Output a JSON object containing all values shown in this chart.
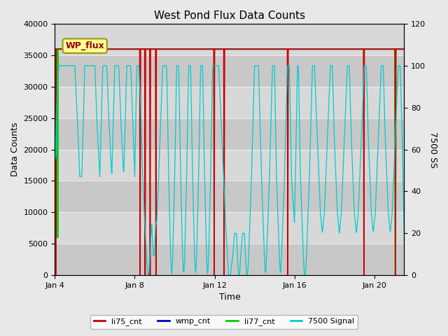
{
  "title": "West Pond Flux Data Counts",
  "xlabel": "Time",
  "ylabel_left": "Data Counts",
  "ylabel_right": "7500 SS",
  "left_ylim": [
    0,
    40000
  ],
  "right_ylim": [
    0,
    120
  ],
  "fig_facecolor": "#e8e8e8",
  "plot_facecolor": "#d4d4d4",
  "legend_label_box": "WP_flux",
  "legend_box_color": "#ffff99",
  "legend_box_border": "#999900",
  "colors": {
    "li75_cnt": "#cc0000",
    "wmp_cnt": "#0000cc",
    "li77_cnt": "#00cc00",
    "7500 Signal": "#00cccc"
  },
  "xtick_labels": [
    "Jan 4",
    "Jan 8",
    "Jan 12",
    "Jan 16",
    "Jan 20"
  ],
  "xtick_positions": [
    0,
    4,
    8,
    12,
    16
  ],
  "xlim": [
    0,
    17.5
  ],
  "yticks_left": [
    0,
    5000,
    10000,
    15000,
    20000,
    25000,
    30000,
    35000,
    40000
  ],
  "yticks_right": [
    0,
    20,
    40,
    60,
    80,
    100,
    120
  ],
  "grid_color": "#ffffff",
  "grid_alpha": 0.6
}
